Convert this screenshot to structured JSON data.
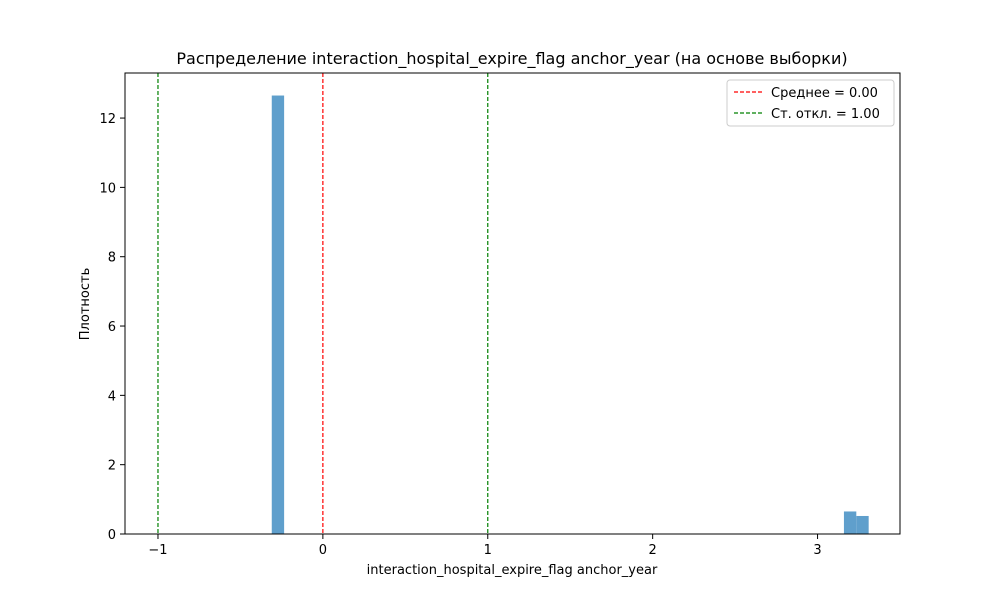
{
  "chart_data": {
    "type": "bar",
    "title": "Распределение interaction_hospital_expire_flag anchor_year (на основе выборки)",
    "xlabel": "interaction_hospital_expire_flag anchor_year",
    "ylabel": "Плотность",
    "xlim": [
      -1.2,
      3.5
    ],
    "ylim": [
      0,
      13.3
    ],
    "x_ticks": [
      -1,
      0,
      1,
      2,
      3
    ],
    "x_tick_labels": [
      "−1",
      "0",
      "1",
      "2",
      "3"
    ],
    "y_ticks": [
      0,
      2,
      4,
      6,
      8,
      10,
      12
    ],
    "y_tick_labels": [
      "0",
      "2",
      "4",
      "6",
      "8",
      "10",
      "12"
    ],
    "bars": [
      {
        "x0": -0.31,
        "x1": -0.235,
        "height": 12.65
      },
      {
        "x0": 3.16,
        "x1": 3.235,
        "height": 0.65
      },
      {
        "x0": 3.235,
        "x1": 3.31,
        "height": 0.52
      }
    ],
    "bar_color": "#5f9fcc",
    "reference_lines": [
      {
        "x": 0,
        "color": "#ff0000",
        "style": "dashed"
      },
      {
        "x": -1,
        "color": "#008000",
        "style": "dashed"
      },
      {
        "x": 1,
        "color": "#008000",
        "style": "dashed"
      }
    ],
    "legend": {
      "placement": "top-right",
      "entries": [
        {
          "label": "Среднее = 0.00",
          "color": "#ff0000",
          "style": "dashed"
        },
        {
          "label": "Ст. откл. = 1.00",
          "color": "#008000",
          "style": "dashed"
        }
      ]
    },
    "grid": false
  }
}
